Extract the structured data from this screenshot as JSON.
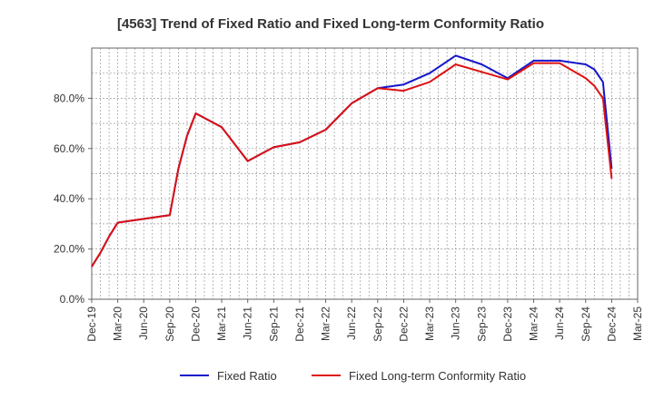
{
  "chart_data": {
    "type": "line",
    "title": "[4563]  Trend of Fixed Ratio and Fixed Long-term Conformity Ratio",
    "xlabel": "",
    "ylabel": "",
    "x_tick_labels": [
      "Dec-19",
      "Mar-20",
      "Jun-20",
      "Sep-20",
      "Dec-20",
      "Mar-21",
      "Jun-21",
      "Sep-21",
      "Dec-21",
      "Mar-22",
      "Jun-22",
      "Sep-22",
      "Dec-22",
      "Mar-23",
      "Jun-23",
      "Sep-23",
      "Dec-23",
      "Mar-24",
      "Jun-24",
      "Sep-24",
      "Dec-24",
      "Mar-25"
    ],
    "y_tick_labels": [
      "0.0%",
      "20.0%",
      "40.0%",
      "60.0%",
      "80.0%"
    ],
    "y_ticks": [
      0,
      20,
      40,
      60,
      80
    ],
    "ylim": [
      0,
      100
    ],
    "xlim": [
      "2019-12",
      "2025-03"
    ],
    "grid": true,
    "legend_position": "bottom",
    "series": [
      {
        "name": "Fixed Ratio",
        "color": "#1515cc",
        "points": [
          [
            "2019-12",
            13.0
          ],
          [
            "2020-01",
            18.5
          ],
          [
            "2020-02",
            25.0
          ],
          [
            "2020-03",
            30.5
          ],
          [
            "2020-06",
            32.0
          ],
          [
            "2020-09",
            33.5
          ],
          [
            "2020-10",
            52.0
          ],
          [
            "2020-11",
            65.0
          ],
          [
            "2020-12",
            74.0
          ],
          [
            "2021-03",
            68.5
          ],
          [
            "2021-06",
            55.0
          ],
          [
            "2021-09",
            60.5
          ],
          [
            "2021-12",
            62.5
          ],
          [
            "2022-03",
            67.5
          ],
          [
            "2022-06",
            78.0
          ],
          [
            "2022-09",
            84.0
          ],
          [
            "2022-12",
            85.5
          ],
          [
            "2023-03",
            90.0
          ],
          [
            "2023-06",
            97.0
          ],
          [
            "2023-09",
            93.5
          ],
          [
            "2023-12",
            88.0
          ],
          [
            "2024-03",
            95.0
          ],
          [
            "2024-06",
            95.0
          ],
          [
            "2024-09",
            93.5
          ],
          [
            "2024-10",
            91.5
          ],
          [
            "2024-11",
            86.5
          ],
          [
            "2024-12",
            52.0
          ]
        ]
      },
      {
        "name": "Fixed Long-term Conformity Ratio",
        "color": "#dd1111",
        "points": [
          [
            "2019-12",
            13.0
          ],
          [
            "2020-01",
            18.5
          ],
          [
            "2020-02",
            25.0
          ],
          [
            "2020-03",
            30.5
          ],
          [
            "2020-06",
            32.0
          ],
          [
            "2020-09",
            33.5
          ],
          [
            "2020-10",
            52.0
          ],
          [
            "2020-11",
            65.0
          ],
          [
            "2020-12",
            74.0
          ],
          [
            "2021-03",
            68.5
          ],
          [
            "2021-06",
            55.0
          ],
          [
            "2021-09",
            60.5
          ],
          [
            "2021-12",
            62.5
          ],
          [
            "2022-03",
            67.5
          ],
          [
            "2022-06",
            78.0
          ],
          [
            "2022-09",
            84.0
          ],
          [
            "2022-12",
            83.0
          ],
          [
            "2023-03",
            86.5
          ],
          [
            "2023-06",
            93.5
          ],
          [
            "2023-09",
            90.5
          ],
          [
            "2023-12",
            87.5
          ],
          [
            "2024-03",
            94.0
          ],
          [
            "2024-06",
            94.0
          ],
          [
            "2024-09",
            88.0
          ],
          [
            "2024-10",
            85.0
          ],
          [
            "2024-11",
            80.0
          ],
          [
            "2024-12",
            48.0
          ]
        ]
      }
    ]
  }
}
